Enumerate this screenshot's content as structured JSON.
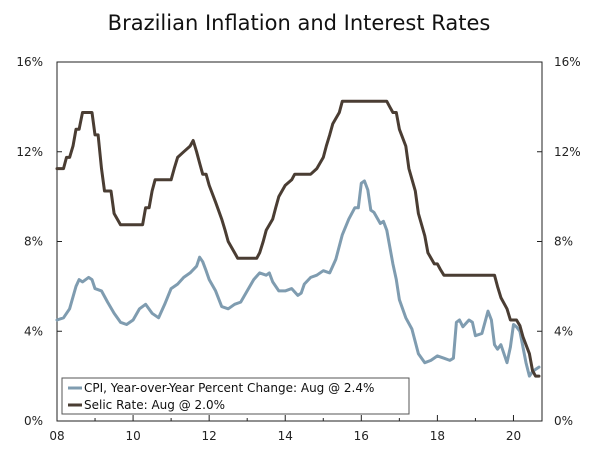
{
  "chart_data": {
    "type": "line",
    "title": "Brazilian Inflation and Interest Rates",
    "xlabel": "",
    "ylabel": "",
    "xlim": [
      2008.0,
      2020.75
    ],
    "ylim": [
      0,
      16
    ],
    "x_ticks": [
      {
        "value": 2008,
        "label": "08"
      },
      {
        "value": 2010,
        "label": "10"
      },
      {
        "value": 2012,
        "label": "12"
      },
      {
        "value": 2014,
        "label": "14"
      },
      {
        "value": 2016,
        "label": "16"
      },
      {
        "value": 2018,
        "label": "18"
      },
      {
        "value": 2020,
        "label": "20"
      }
    ],
    "y_ticks": [
      {
        "value": 0,
        "label": "0%"
      },
      {
        "value": 4,
        "label": "4%"
      },
      {
        "value": 8,
        "label": "8%"
      },
      {
        "value": 12,
        "label": "12%"
      },
      {
        "value": 16,
        "label": "16%"
      }
    ],
    "legend_position": "bottom-left",
    "grid": false,
    "series": [
      {
        "name": "CPI, Year-over-Year Percent Change: Aug @ 2.4%",
        "color": "#7f9cb0",
        "points": [
          [
            2008.0,
            4.5
          ],
          [
            2008.17,
            4.6
          ],
          [
            2008.33,
            5.0
          ],
          [
            2008.5,
            6.0
          ],
          [
            2008.58,
            6.3
          ],
          [
            2008.67,
            6.2
          ],
          [
            2008.83,
            6.4
          ],
          [
            2008.92,
            6.3
          ],
          [
            2009.0,
            5.9
          ],
          [
            2009.17,
            5.8
          ],
          [
            2009.33,
            5.3
          ],
          [
            2009.5,
            4.8
          ],
          [
            2009.67,
            4.4
          ],
          [
            2009.83,
            4.3
          ],
          [
            2010.0,
            4.5
          ],
          [
            2010.17,
            5.0
          ],
          [
            2010.33,
            5.2
          ],
          [
            2010.5,
            4.8
          ],
          [
            2010.67,
            4.6
          ],
          [
            2010.83,
            5.2
          ],
          [
            2011.0,
            5.9
          ],
          [
            2011.17,
            6.1
          ],
          [
            2011.33,
            6.4
          ],
          [
            2011.5,
            6.6
          ],
          [
            2011.67,
            6.9
          ],
          [
            2011.75,
            7.3
          ],
          [
            2011.83,
            7.1
          ],
          [
            2011.92,
            6.7
          ],
          [
            2012.0,
            6.3
          ],
          [
            2012.17,
            5.8
          ],
          [
            2012.33,
            5.1
          ],
          [
            2012.5,
            5.0
          ],
          [
            2012.67,
            5.2
          ],
          [
            2012.83,
            5.3
          ],
          [
            2013.0,
            5.8
          ],
          [
            2013.17,
            6.3
          ],
          [
            2013.33,
            6.6
          ],
          [
            2013.5,
            6.5
          ],
          [
            2013.58,
            6.6
          ],
          [
            2013.67,
            6.2
          ],
          [
            2013.83,
            5.8
          ],
          [
            2014.0,
            5.8
          ],
          [
            2014.17,
            5.9
          ],
          [
            2014.33,
            5.6
          ],
          [
            2014.42,
            5.7
          ],
          [
            2014.5,
            6.1
          ],
          [
            2014.67,
            6.4
          ],
          [
            2014.83,
            6.5
          ],
          [
            2015.0,
            6.7
          ],
          [
            2015.17,
            6.6
          ],
          [
            2015.33,
            7.2
          ],
          [
            2015.5,
            8.3
          ],
          [
            2015.67,
            9.0
          ],
          [
            2015.83,
            9.5
          ],
          [
            2015.92,
            9.5
          ],
          [
            2016.0,
            10.6
          ],
          [
            2016.08,
            10.7
          ],
          [
            2016.17,
            10.3
          ],
          [
            2016.25,
            9.4
          ],
          [
            2016.33,
            9.3
          ],
          [
            2016.5,
            8.8
          ],
          [
            2016.58,
            8.9
          ],
          [
            2016.67,
            8.5
          ],
          [
            2016.83,
            7.0
          ],
          [
            2016.92,
            6.3
          ],
          [
            2017.0,
            5.4
          ],
          [
            2017.17,
            4.6
          ],
          [
            2017.33,
            4.1
          ],
          [
            2017.5,
            3.0
          ],
          [
            2017.67,
            2.6
          ],
          [
            2017.83,
            2.7
          ],
          [
            2018.0,
            2.9
          ],
          [
            2018.17,
            2.8
          ],
          [
            2018.33,
            2.7
          ],
          [
            2018.42,
            2.8
          ],
          [
            2018.5,
            4.4
          ],
          [
            2018.58,
            4.5
          ],
          [
            2018.67,
            4.2
          ],
          [
            2018.83,
            4.5
          ],
          [
            2018.92,
            4.4
          ],
          [
            2019.0,
            3.8
          ],
          [
            2019.17,
            3.9
          ],
          [
            2019.33,
            4.9
          ],
          [
            2019.42,
            4.5
          ],
          [
            2019.5,
            3.4
          ],
          [
            2019.58,
            3.2
          ],
          [
            2019.67,
            3.4
          ],
          [
            2019.83,
            2.6
          ],
          [
            2019.92,
            3.3
          ],
          [
            2020.0,
            4.3
          ],
          [
            2020.08,
            4.2
          ],
          [
            2020.17,
            4.0
          ],
          [
            2020.33,
            2.6
          ],
          [
            2020.42,
            2.0
          ],
          [
            2020.5,
            2.2
          ],
          [
            2020.58,
            2.3
          ],
          [
            2020.67,
            2.4
          ]
        ]
      },
      {
        "name": "Selic Rate: Aug @ 2.0%",
        "color": "#4a3d33",
        "points": [
          [
            2008.0,
            11.25
          ],
          [
            2008.17,
            11.25
          ],
          [
            2008.25,
            11.75
          ],
          [
            2008.33,
            11.75
          ],
          [
            2008.42,
            12.25
          ],
          [
            2008.5,
            13.0
          ],
          [
            2008.58,
            13.0
          ],
          [
            2008.67,
            13.75
          ],
          [
            2008.92,
            13.75
          ],
          [
            2009.0,
            12.75
          ],
          [
            2009.08,
            12.75
          ],
          [
            2009.17,
            11.25
          ],
          [
            2009.25,
            10.25
          ],
          [
            2009.42,
            10.25
          ],
          [
            2009.5,
            9.25
          ],
          [
            2009.67,
            8.75
          ],
          [
            2010.25,
            8.75
          ],
          [
            2010.33,
            9.5
          ],
          [
            2010.42,
            9.5
          ],
          [
            2010.5,
            10.25
          ],
          [
            2010.58,
            10.75
          ],
          [
            2011.0,
            10.75
          ],
          [
            2011.08,
            11.25
          ],
          [
            2011.17,
            11.75
          ],
          [
            2011.33,
            12.0
          ],
          [
            2011.5,
            12.25
          ],
          [
            2011.58,
            12.5
          ],
          [
            2011.67,
            12.0
          ],
          [
            2011.75,
            11.5
          ],
          [
            2011.83,
            11.0
          ],
          [
            2011.92,
            11.0
          ],
          [
            2012.0,
            10.5
          ],
          [
            2012.17,
            9.75
          ],
          [
            2012.33,
            9.0
          ],
          [
            2012.42,
            8.5
          ],
          [
            2012.5,
            8.0
          ],
          [
            2012.67,
            7.5
          ],
          [
            2012.75,
            7.25
          ],
          [
            2013.25,
            7.25
          ],
          [
            2013.33,
            7.5
          ],
          [
            2013.42,
            8.0
          ],
          [
            2013.5,
            8.5
          ],
          [
            2013.67,
            9.0
          ],
          [
            2013.75,
            9.5
          ],
          [
            2013.83,
            10.0
          ],
          [
            2014.0,
            10.5
          ],
          [
            2014.17,
            10.75
          ],
          [
            2014.25,
            11.0
          ],
          [
            2014.67,
            11.0
          ],
          [
            2014.83,
            11.25
          ],
          [
            2015.0,
            11.75
          ],
          [
            2015.08,
            12.25
          ],
          [
            2015.17,
            12.75
          ],
          [
            2015.25,
            13.25
          ],
          [
            2015.42,
            13.75
          ],
          [
            2015.5,
            14.25
          ],
          [
            2016.67,
            14.25
          ],
          [
            2016.75,
            14.0
          ],
          [
            2016.83,
            13.75
          ],
          [
            2016.92,
            13.75
          ],
          [
            2017.0,
            13.0
          ],
          [
            2017.17,
            12.25
          ],
          [
            2017.25,
            11.25
          ],
          [
            2017.42,
            10.25
          ],
          [
            2017.5,
            9.25
          ],
          [
            2017.67,
            8.25
          ],
          [
            2017.75,
            7.5
          ],
          [
            2017.92,
            7.0
          ],
          [
            2018.0,
            7.0
          ],
          [
            2018.08,
            6.75
          ],
          [
            2018.17,
            6.5
          ],
          [
            2019.5,
            6.5
          ],
          [
            2019.58,
            6.0
          ],
          [
            2019.67,
            5.5
          ],
          [
            2019.83,
            5.0
          ],
          [
            2019.92,
            4.5
          ],
          [
            2020.08,
            4.5
          ],
          [
            2020.17,
            4.25
          ],
          [
            2020.25,
            3.75
          ],
          [
            2020.42,
            3.0
          ],
          [
            2020.5,
            2.25
          ],
          [
            2020.58,
            2.0
          ],
          [
            2020.67,
            2.0
          ]
        ]
      }
    ]
  }
}
